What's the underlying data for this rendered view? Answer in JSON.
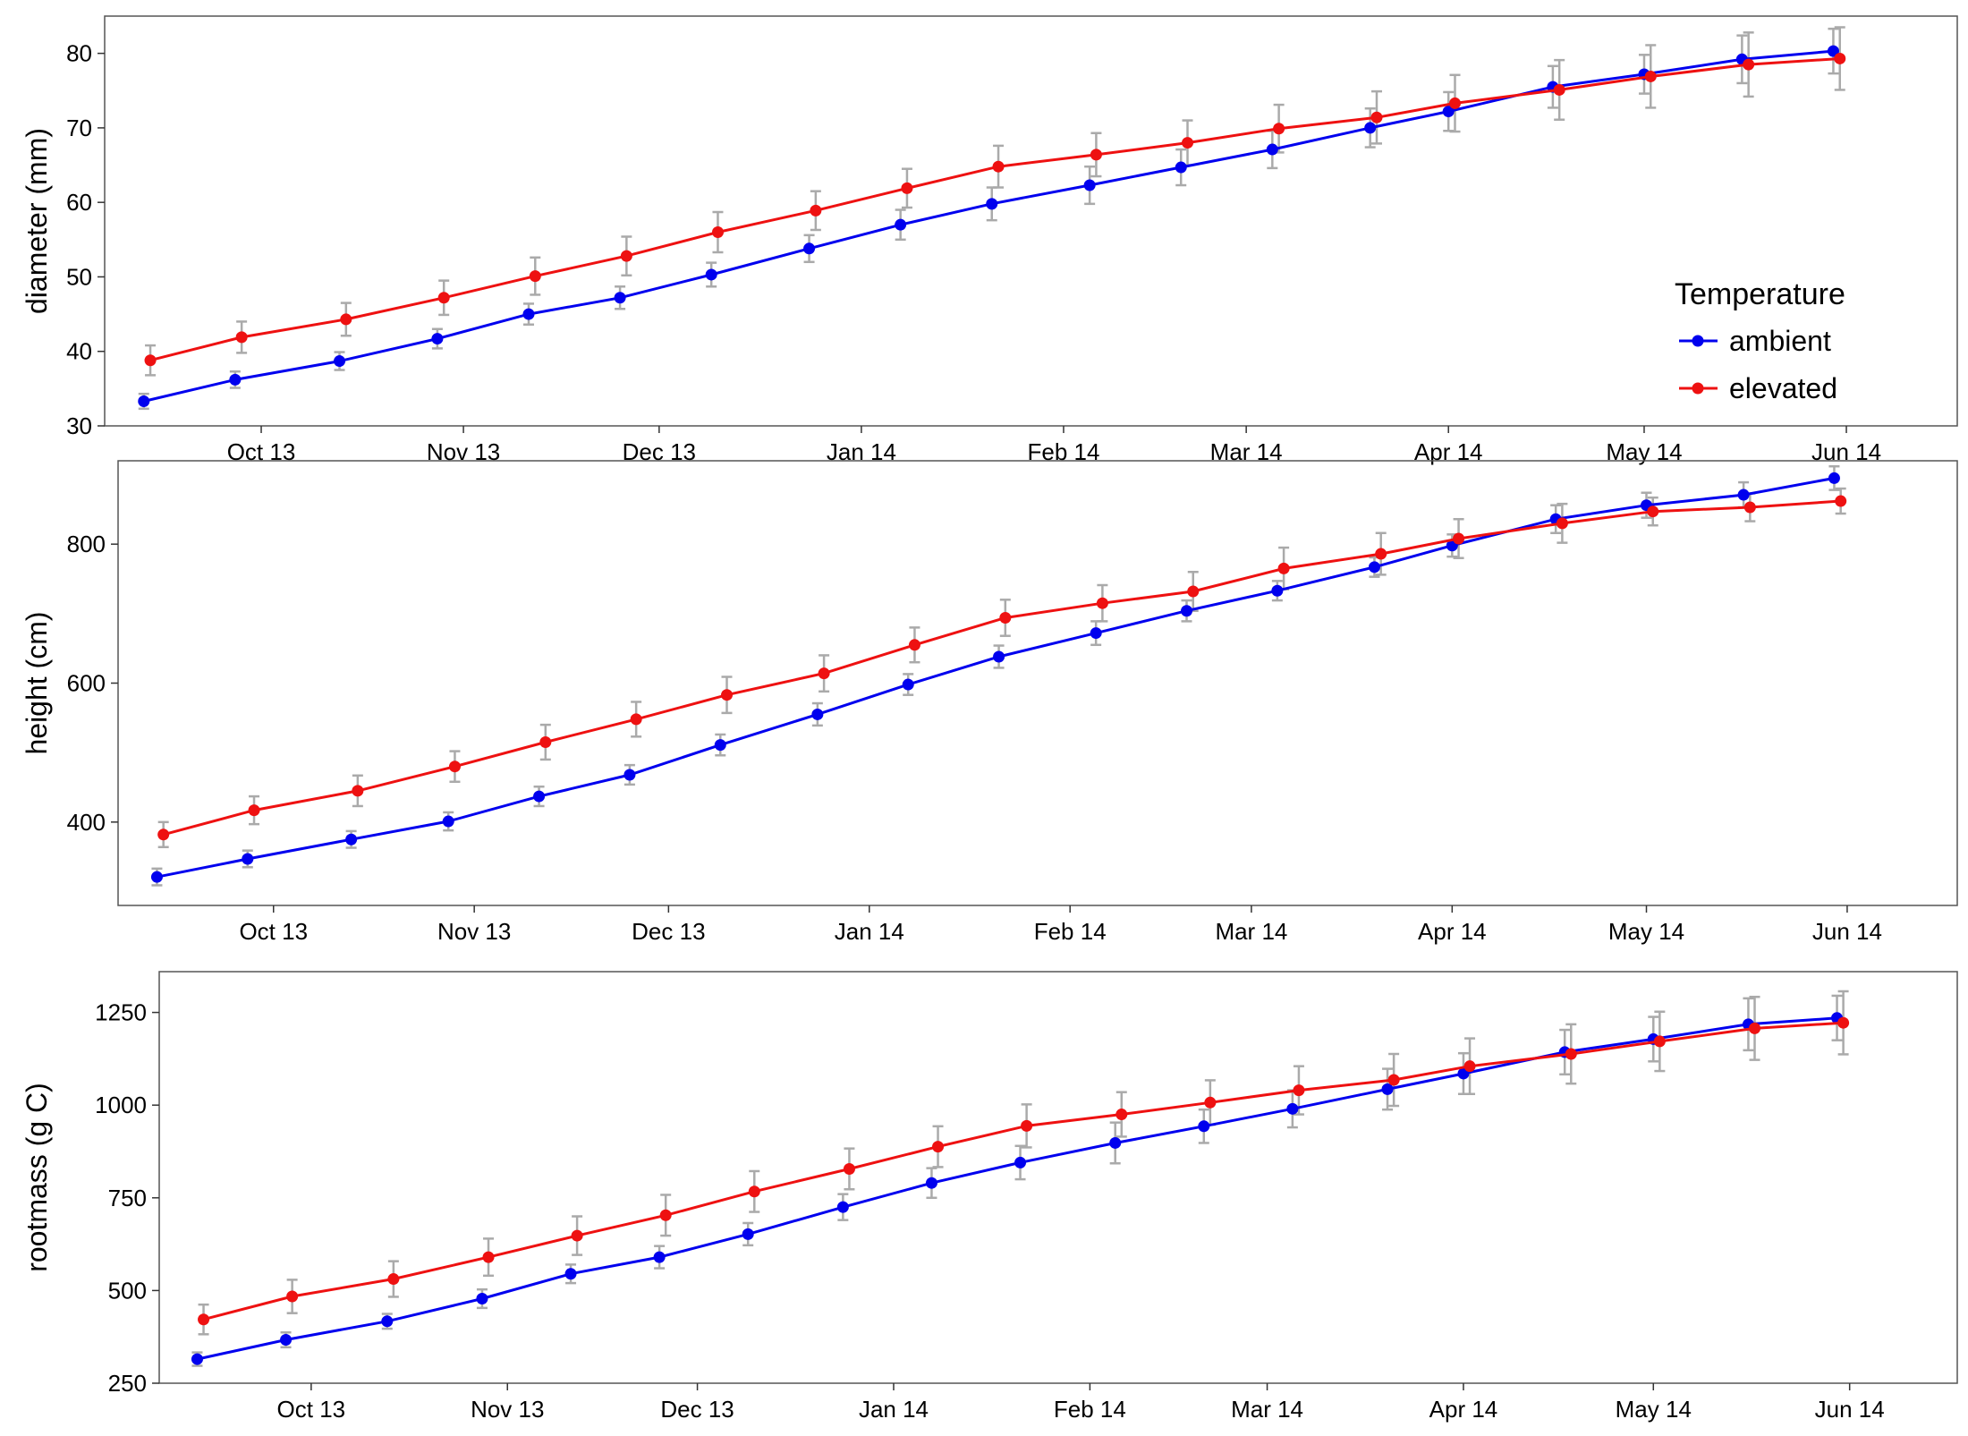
{
  "colors": {
    "ambient": "#0000ee",
    "elevated": "#ee1111",
    "error_bar": "#aaaaaa",
    "panel_border": "#555555"
  },
  "legend": {
    "title": "Temperature",
    "items": [
      {
        "label": "ambient",
        "color": "#0000ee"
      },
      {
        "label": "elevated",
        "color": "#ee1111"
      }
    ],
    "placement": "inside-right of top panel"
  },
  "chart_data": [
    {
      "type": "line",
      "ylabel": "diameter (mm)",
      "xlabel": "",
      "x_axis": {
        "type": "date",
        "range": [
          "2013-09-07",
          "2014-06-18"
        ],
        "ticks": [
          "2013-10-01",
          "2013-11-01",
          "2013-12-01",
          "2014-01-01",
          "2014-02-01",
          "2014-03-01",
          "2014-04-01",
          "2014-05-01",
          "2014-06-01"
        ],
        "tick_labels": [
          "Oct 13",
          "Nov 13",
          "Dec 13",
          "Jan 14",
          "Feb 14",
          "Mar 14",
          "Apr 14",
          "May 14",
          "Jun 14"
        ]
      },
      "ylim": [
        30,
        85
      ],
      "yticks": [
        30,
        40,
        50,
        60,
        70,
        80
      ],
      "grid": false,
      "series": [
        {
          "name": "ambient",
          "points": [
            {
              "x": "2013-09-13",
              "y": 33.3,
              "err": 1
            },
            {
              "x": "2013-09-27",
              "y": 36.2,
              "err": 1.1
            },
            {
              "x": "2013-10-13",
              "y": 38.7,
              "err": 1.2
            },
            {
              "x": "2013-10-28",
              "y": 41.7,
              "err": 1.3
            },
            {
              "x": "2013-11-11",
              "y": 45.0,
              "err": 1.4
            },
            {
              "x": "2013-11-25",
              "y": 47.2,
              "err": 1.5
            },
            {
              "x": "2013-12-09",
              "y": 50.3,
              "err": 1.6
            },
            {
              "x": "2013-12-24",
              "y": 53.8,
              "err": 1.8
            },
            {
              "x": "2014-01-07",
              "y": 57.0,
              "err": 2.0
            },
            {
              "x": "2014-01-21",
              "y": 59.8,
              "err": 2.2
            },
            {
              "x": "2014-02-05",
              "y": 62.3,
              "err": 2.5
            },
            {
              "x": "2014-02-19",
              "y": 64.7,
              "err": 2.4
            },
            {
              "x": "2014-03-05",
              "y": 67.1,
              "err": 2.5
            },
            {
              "x": "2014-03-20",
              "y": 70.0,
              "err": 2.6
            },
            {
              "x": "2014-04-01",
              "y": 72.2,
              "err": 2.6
            },
            {
              "x": "2014-04-17",
              "y": 75.5,
              "err": 2.8
            },
            {
              "x": "2014-05-01",
              "y": 77.2,
              "err": 2.6
            },
            {
              "x": "2014-05-16",
              "y": 79.2,
              "err": 3.2
            },
            {
              "x": "2014-05-30",
              "y": 80.3,
              "err": 3.0
            }
          ]
        },
        {
          "name": "elevated",
          "points": [
            {
              "x": "2013-09-14",
              "y": 38.8,
              "err": 2.0
            },
            {
              "x": "2013-09-28",
              "y": 41.9,
              "err": 2.1
            },
            {
              "x": "2013-10-14",
              "y": 44.3,
              "err": 2.2
            },
            {
              "x": "2013-10-29",
              "y": 47.2,
              "err": 2.3
            },
            {
              "x": "2013-11-12",
              "y": 50.1,
              "err": 2.5
            },
            {
              "x": "2013-11-26",
              "y": 52.8,
              "err": 2.6
            },
            {
              "x": "2013-12-10",
              "y": 56.0,
              "err": 2.7
            },
            {
              "x": "2013-12-25",
              "y": 58.9,
              "err": 2.6
            },
            {
              "x": "2014-01-08",
              "y": 61.9,
              "err": 2.6
            },
            {
              "x": "2014-01-22",
              "y": 64.8,
              "err": 2.8
            },
            {
              "x": "2014-02-06",
              "y": 66.4,
              "err": 2.9
            },
            {
              "x": "2014-02-20",
              "y": 68.0,
              "err": 3.0
            },
            {
              "x": "2014-03-06",
              "y": 69.9,
              "err": 3.2
            },
            {
              "x": "2014-03-21",
              "y": 71.4,
              "err": 3.5
            },
            {
              "x": "2014-04-02",
              "y": 73.3,
              "err": 3.8
            },
            {
              "x": "2014-04-18",
              "y": 75.1,
              "err": 4.0
            },
            {
              "x": "2014-05-02",
              "y": 76.9,
              "err": 4.2
            },
            {
              "x": "2014-05-17",
              "y": 78.5,
              "err": 4.3
            },
            {
              "x": "2014-05-31",
              "y": 79.3,
              "err": 4.2
            }
          ]
        }
      ]
    },
    {
      "type": "line",
      "ylabel": "height (cm)",
      "xlabel": "",
      "x_axis": {
        "type": "date",
        "range": [
          "2013-09-07",
          "2014-06-18"
        ],
        "ticks": [
          "2013-10-01",
          "2013-11-01",
          "2013-12-01",
          "2014-01-01",
          "2014-02-01",
          "2014-03-01",
          "2014-04-01",
          "2014-05-01",
          "2014-06-01"
        ],
        "tick_labels": [
          "Oct 13",
          "Nov 13",
          "Dec 13",
          "Jan 14",
          "Feb 14",
          "Mar 14",
          "Apr 14",
          "May 14",
          "Jun 14"
        ]
      },
      "ylim": [
        280,
        920
      ],
      "yticks": [
        400,
        600,
        800
      ],
      "grid": false,
      "series": [
        {
          "name": "ambient",
          "points": [
            {
              "x": "2013-09-13",
              "y": 321,
              "err": 12
            },
            {
              "x": "2013-09-27",
              "y": 347,
              "err": 12
            },
            {
              "x": "2013-10-13",
              "y": 375,
              "err": 12
            },
            {
              "x": "2013-10-28",
              "y": 401,
              "err": 13
            },
            {
              "x": "2013-11-11",
              "y": 437,
              "err": 14
            },
            {
              "x": "2013-11-25",
              "y": 468,
              "err": 14
            },
            {
              "x": "2013-12-09",
              "y": 511,
              "err": 15
            },
            {
              "x": "2013-12-24",
              "y": 555,
              "err": 16
            },
            {
              "x": "2014-01-07",
              "y": 598,
              "err": 15
            },
            {
              "x": "2014-01-21",
              "y": 638,
              "err": 16
            },
            {
              "x": "2014-02-05",
              "y": 672,
              "err": 17
            },
            {
              "x": "2014-02-19",
              "y": 704,
              "err": 15
            },
            {
              "x": "2014-03-05",
              "y": 733,
              "err": 14
            },
            {
              "x": "2014-03-20",
              "y": 767,
              "err": 14
            },
            {
              "x": "2014-04-01",
              "y": 798,
              "err": 16
            },
            {
              "x": "2014-04-17",
              "y": 836,
              "err": 20
            },
            {
              "x": "2014-05-01",
              "y": 856,
              "err": 18
            },
            {
              "x": "2014-05-16",
              "y": 871,
              "err": 18
            },
            {
              "x": "2014-05-30",
              "y": 895,
              "err": 17
            }
          ]
        },
        {
          "name": "elevated",
          "points": [
            {
              "x": "2013-09-14",
              "y": 382,
              "err": 18
            },
            {
              "x": "2013-09-28",
              "y": 417,
              "err": 20
            },
            {
              "x": "2013-10-14",
              "y": 445,
              "err": 22
            },
            {
              "x": "2013-10-29",
              "y": 480,
              "err": 22
            },
            {
              "x": "2013-11-12",
              "y": 515,
              "err": 25
            },
            {
              "x": "2013-11-26",
              "y": 548,
              "err": 25
            },
            {
              "x": "2013-12-10",
              "y": 583,
              "err": 26
            },
            {
              "x": "2013-12-25",
              "y": 614,
              "err": 26
            },
            {
              "x": "2014-01-08",
              "y": 655,
              "err": 25
            },
            {
              "x": "2014-01-22",
              "y": 694,
              "err": 26
            },
            {
              "x": "2014-02-06",
              "y": 715,
              "err": 26
            },
            {
              "x": "2014-02-20",
              "y": 732,
              "err": 28
            },
            {
              "x": "2014-03-06",
              "y": 765,
              "err": 30
            },
            {
              "x": "2014-03-21",
              "y": 786,
              "err": 30
            },
            {
              "x": "2014-04-02",
              "y": 808,
              "err": 28
            },
            {
              "x": "2014-04-18",
              "y": 830,
              "err": 28
            },
            {
              "x": "2014-05-02",
              "y": 847,
              "err": 20
            },
            {
              "x": "2014-05-17",
              "y": 853,
              "err": 20
            },
            {
              "x": "2014-05-31",
              "y": 862,
              "err": 18
            }
          ]
        }
      ]
    },
    {
      "type": "line",
      "ylabel": "rootmass (g C)",
      "xlabel": "",
      "x_axis": {
        "type": "date",
        "range": [
          "2013-09-07",
          "2014-06-18"
        ],
        "ticks": [
          "2013-10-01",
          "2013-11-01",
          "2013-12-01",
          "2014-01-01",
          "2014-02-01",
          "2014-03-01",
          "2014-04-01",
          "2014-05-01",
          "2014-06-01"
        ],
        "tick_labels": [
          "Oct 13",
          "Nov 13",
          "Dec 13",
          "Jan 14",
          "Feb 14",
          "Mar 14",
          "Apr 14",
          "May 14",
          "Jun 14"
        ]
      },
      "ylim": [
        250,
        1360
      ],
      "yticks": [
        250,
        500,
        750,
        1000,
        1250
      ],
      "grid": false,
      "series": [
        {
          "name": "ambient",
          "points": [
            {
              "x": "2013-09-13",
              "y": 315,
              "err": 18
            },
            {
              "x": "2013-09-27",
              "y": 367,
              "err": 20
            },
            {
              "x": "2013-10-13",
              "y": 417,
              "err": 20
            },
            {
              "x": "2013-10-28",
              "y": 478,
              "err": 25
            },
            {
              "x": "2013-11-11",
              "y": 545,
              "err": 25
            },
            {
              "x": "2013-11-25",
              "y": 590,
              "err": 30
            },
            {
              "x": "2013-12-09",
              "y": 652,
              "err": 30
            },
            {
              "x": "2013-12-24",
              "y": 725,
              "err": 35
            },
            {
              "x": "2014-01-07",
              "y": 790,
              "err": 40
            },
            {
              "x": "2014-01-21",
              "y": 845,
              "err": 45
            },
            {
              "x": "2014-02-05",
              "y": 898,
              "err": 55
            },
            {
              "x": "2014-02-19",
              "y": 943,
              "err": 45
            },
            {
              "x": "2014-03-05",
              "y": 990,
              "err": 50
            },
            {
              "x": "2014-03-20",
              "y": 1043,
              "err": 55
            },
            {
              "x": "2014-04-01",
              "y": 1085,
              "err": 55
            },
            {
              "x": "2014-04-17",
              "y": 1143,
              "err": 60
            },
            {
              "x": "2014-05-01",
              "y": 1178,
              "err": 60
            },
            {
              "x": "2014-05-16",
              "y": 1218,
              "err": 70
            },
            {
              "x": "2014-05-30",
              "y": 1235,
              "err": 60
            }
          ]
        },
        {
          "name": "elevated",
          "points": [
            {
              "x": "2013-09-14",
              "y": 422,
              "err": 40
            },
            {
              "x": "2013-09-28",
              "y": 484,
              "err": 45
            },
            {
              "x": "2013-10-14",
              "y": 531,
              "err": 48
            },
            {
              "x": "2013-10-29",
              "y": 590,
              "err": 50
            },
            {
              "x": "2013-11-12",
              "y": 648,
              "err": 52
            },
            {
              "x": "2013-11-26",
              "y": 703,
              "err": 55
            },
            {
              "x": "2013-12-10",
              "y": 767,
              "err": 55
            },
            {
              "x": "2013-12-25",
              "y": 828,
              "err": 55
            },
            {
              "x": "2014-01-08",
              "y": 888,
              "err": 55
            },
            {
              "x": "2014-01-22",
              "y": 944,
              "err": 58
            },
            {
              "x": "2014-02-06",
              "y": 975,
              "err": 60
            },
            {
              "x": "2014-02-20",
              "y": 1007,
              "err": 60
            },
            {
              "x": "2014-03-06",
              "y": 1040,
              "err": 65
            },
            {
              "x": "2014-03-21",
              "y": 1068,
              "err": 70
            },
            {
              "x": "2014-04-02",
              "y": 1105,
              "err": 75
            },
            {
              "x": "2014-04-18",
              "y": 1138,
              "err": 80
            },
            {
              "x": "2014-05-02",
              "y": 1172,
              "err": 80
            },
            {
              "x": "2014-05-17",
              "y": 1207,
              "err": 85
            },
            {
              "x": "2014-05-31",
              "y": 1222,
              "err": 85
            }
          ]
        }
      ]
    }
  ]
}
